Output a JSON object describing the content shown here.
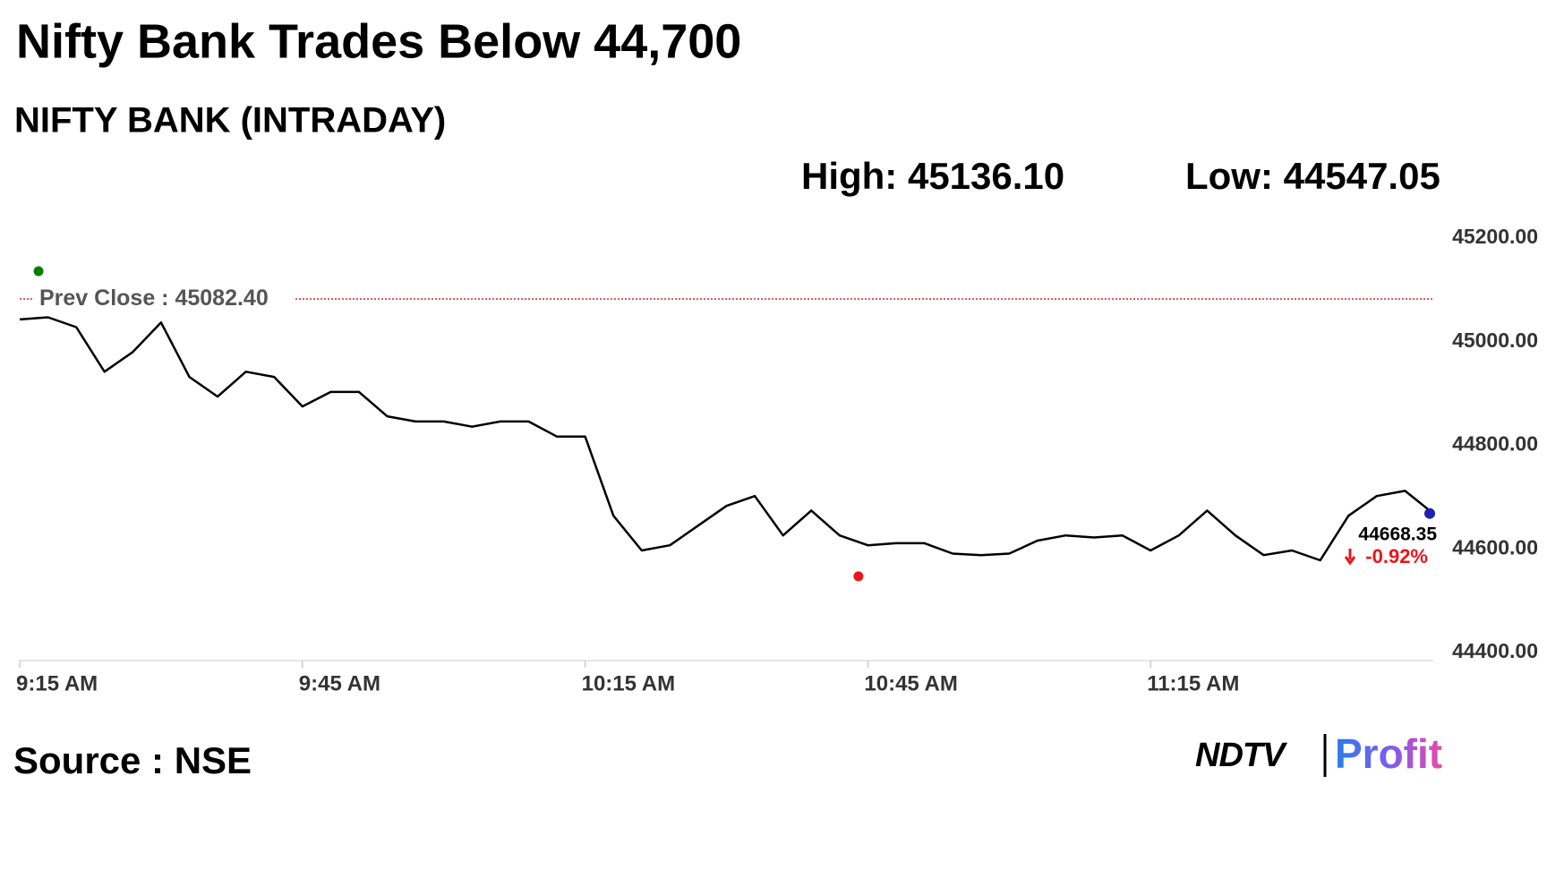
{
  "chart_data": {
    "type": "line",
    "title": "Nifty Bank Trades Below 44,700",
    "subtitle": "NIFTY BANK (INTRADAY)",
    "high": {
      "label": "High:",
      "value": 45136.1,
      "value_label": "45136.10",
      "x": "9:17 AM"
    },
    "low": {
      "label": "Low:",
      "value": 44547.05,
      "value_label": "44547.05",
      "x": "10:44 AM"
    },
    "prev_close": {
      "label": "Prev Close :",
      "value": 45082.4,
      "value_label": "45082.40"
    },
    "last_label": "44668.35",
    "change": {
      "value": -0.92,
      "label": "-0.92%"
    },
    "source": "Source : NSE",
    "logo": {
      "left": "NDTV",
      "right": "Profit"
    },
    "x": [
      "9:15 AM",
      "9:18 AM",
      "9:21 AM",
      "9:24 AM",
      "9:27 AM",
      "9:30 AM",
      "9:33 AM",
      "9:36 AM",
      "9:39 AM",
      "9:42 AM",
      "9:45 AM",
      "9:48 AM",
      "9:51 AM",
      "9:54 AM",
      "9:57 AM",
      "10:00 AM",
      "10:03 AM",
      "10:06 AM",
      "10:09 AM",
      "10:12 AM",
      "10:15 AM",
      "10:18 AM",
      "10:21 AM",
      "10:24 AM",
      "10:27 AM",
      "10:30 AM",
      "10:33 AM",
      "10:36 AM",
      "10:39 AM",
      "10:42 AM",
      "10:45 AM",
      "10:48 AM",
      "10:51 AM",
      "10:54 AM",
      "10:57 AM",
      "11:00 AM",
      "11:03 AM",
      "11:06 AM",
      "11:09 AM",
      "11:12 AM",
      "11:15 AM",
      "11:18 AM",
      "11:21 AM",
      "11:24 AM",
      "11:27 AM",
      "11:30 AM",
      "11:33 AM",
      "11:36 AM",
      "11:39 AM",
      "11:42 AM",
      "11:45 AM"
    ],
    "series": [
      {
        "name": "NIFTY BANK",
        "color": "#000000",
        "values": [
          45043,
          45047,
          45028,
          44942,
          44980,
          45037,
          44932,
          44894,
          44942,
          44932,
          44875,
          44903,
          44903,
          44856,
          44846,
          44846,
          44836,
          44846,
          44846,
          44817,
          44817,
          44664,
          44597,
          44607,
          44645,
          44683,
          44702,
          44626,
          44674,
          44626,
          44607,
          44611,
          44611,
          44591,
          44588,
          44591,
          44616,
          44626,
          44622,
          44626,
          44597,
          44626,
          44674,
          44626,
          44588,
          44597,
          44578,
          44664,
          44702,
          44712,
          44668.35
        ]
      }
    ],
    "xlim": [
      "9:15 AM",
      "11:45 AM"
    ],
    "xticks": [
      "9:15 AM",
      "9:45 AM",
      "10:15 AM",
      "10:45 AM",
      "11:15 AM"
    ],
    "ylim": [
      44400,
      45200
    ],
    "yticks": [
      {
        "value": 44400,
        "label": "44400.00"
      },
      {
        "value": 44600,
        "label": "44600.00"
      },
      {
        "value": 44800,
        "label": "44800.00"
      },
      {
        "value": 45000,
        "label": "45000.00"
      },
      {
        "value": 45200,
        "label": "45200.00"
      }
    ],
    "prev_close_color": "#d62728",
    "high_color": "#008000",
    "low_color": "#e8161b",
    "last_color": "#1f1fb4",
    "change_color": "#e8161b"
  }
}
